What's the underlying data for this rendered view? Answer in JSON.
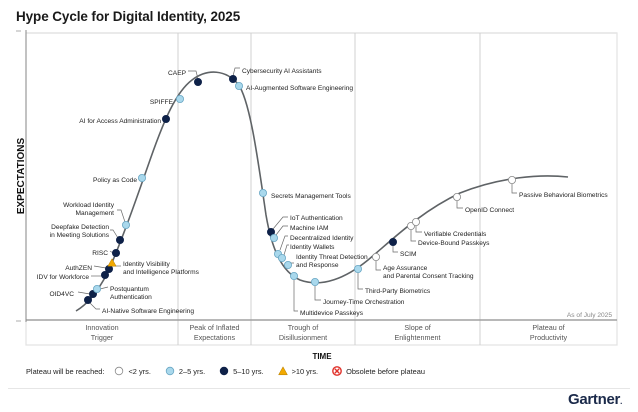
{
  "title": "Hype Cycle for Digital Identity, 2025",
  "chart_data": {
    "type": "scatter",
    "title": "Hype Cycle for Digital Identity, 2025",
    "xlabel": "TIME",
    "ylabel": "EXPECTATIONS",
    "as_of": "As of July 2025",
    "phases": [
      {
        "line1": "Innovation",
        "line2": "Trigger"
      },
      {
        "line1": "Peak of Inflated",
        "line2": "Expectations"
      },
      {
        "line1": "Trough of",
        "line2": "Disillusionment"
      },
      {
        "line1": "Slope of",
        "line2": "Enlightenment"
      },
      {
        "line1": "Plateau of",
        "line2": "Productivity"
      }
    ],
    "legend": {
      "lead": "Plateau will be reached:",
      "items": [
        {
          "key": "lt2",
          "label": "<2 yrs.",
          "color": "#ffffff"
        },
        {
          "key": "2to5",
          "label": "2–5 yrs.",
          "color": "#a9d8ec"
        },
        {
          "key": "5to10",
          "label": "5–10 yrs.",
          "color": "#0e2148"
        },
        {
          "key": "gt10",
          "label": ">10 yrs.",
          "color": "#f2a900"
        },
        {
          "key": "obsolete",
          "label": "Obsolete before plateau",
          "color": "#e0312a"
        }
      ]
    },
    "points": [
      {
        "name": "AI-Native Software Engineering",
        "phase": "Innovation Trigger",
        "plateau": "5to10"
      },
      {
        "name": "OID4VC",
        "phase": "Innovation Trigger",
        "plateau": "5to10"
      },
      {
        "name": "Postquantum Authentication",
        "phase": "Innovation Trigger",
        "plateau": "2to5"
      },
      {
        "name": "IDV for Workforce",
        "phase": "Innovation Trigger",
        "plateau": "5to10"
      },
      {
        "name": "AuthZEN",
        "phase": "Innovation Trigger",
        "plateau": "5to10"
      },
      {
        "name": "Identity Visibility and Intelligence Platforms",
        "phase": "Innovation Trigger",
        "plateau": "gt10"
      },
      {
        "name": "RISC",
        "phase": "Innovation Trigger",
        "plateau": "5to10"
      },
      {
        "name": "Deepfake Detection in Meeting Solutions",
        "phase": "Innovation Trigger",
        "plateau": "5to10"
      },
      {
        "name": "Workload Identity Management",
        "phase": "Innovation Trigger",
        "plateau": "2to5"
      },
      {
        "name": "Policy as Code",
        "phase": "Innovation Trigger",
        "plateau": "2to5"
      },
      {
        "name": "AI for Access Administration",
        "phase": "Innovation Trigger",
        "plateau": "5to10"
      },
      {
        "name": "SPIFFE",
        "phase": "Peak of Inflated Expectations",
        "plateau": "2to5"
      },
      {
        "name": "CAEP",
        "phase": "Peak of Inflated Expectations",
        "plateau": "5to10"
      },
      {
        "name": "Cybersecurity AI Assistants",
        "phase": "Peak of Inflated Expectations",
        "plateau": "5to10"
      },
      {
        "name": "AI-Augmented Software Engineering",
        "phase": "Peak of Inflated Expectations",
        "plateau": "2to5"
      },
      {
        "name": "Secrets Management Tools",
        "phase": "Trough of Disillusionment",
        "plateau": "2to5"
      },
      {
        "name": "IoT Authentication",
        "phase": "Trough of Disillusionment",
        "plateau": "5to10"
      },
      {
        "name": "Machine IAM",
        "phase": "Trough of Disillusionment",
        "plateau": "2to5"
      },
      {
        "name": "Decentralized Identity",
        "phase": "Trough of Disillusionment",
        "plateau": "2to5"
      },
      {
        "name": "Identity Wallets",
        "phase": "Trough of Disillusionment",
        "plateau": "2to5"
      },
      {
        "name": "Identity Threat Detection and Response",
        "phase": "Trough of Disillusionment",
        "plateau": "2to5"
      },
      {
        "name": "Multidevice Passkeys",
        "phase": "Trough of Disillusionment",
        "plateau": "2to5"
      },
      {
        "name": "Journey-Time Orchestration",
        "phase": "Trough of Disillusionment",
        "plateau": "2to5"
      },
      {
        "name": "Third-Party Biometrics",
        "phase": "Slope of Enlightenment",
        "plateau": "2to5"
      },
      {
        "name": "Age Assurance and Parental Consent Tracking",
        "phase": "Slope of Enlightenment",
        "plateau": "lt2"
      },
      {
        "name": "SCIM",
        "phase": "Slope of Enlightenment",
        "plateau": "5to10"
      },
      {
        "name": "Device-Bound Passkeys",
        "phase": "Slope of Enlightenment",
        "plateau": "lt2"
      },
      {
        "name": "Verifiable Credentials",
        "phase": "Slope of Enlightenment",
        "plateau": "lt2"
      },
      {
        "name": "OpenID Connect",
        "phase": "Slope of Enlightenment",
        "plateau": "lt2"
      },
      {
        "name": "Passive Behavioral Biometrics",
        "phase": "Plateau of Productivity",
        "plateau": "lt2"
      }
    ]
  },
  "branding": {
    "logo": "Gartner",
    "logo_dot": "."
  }
}
